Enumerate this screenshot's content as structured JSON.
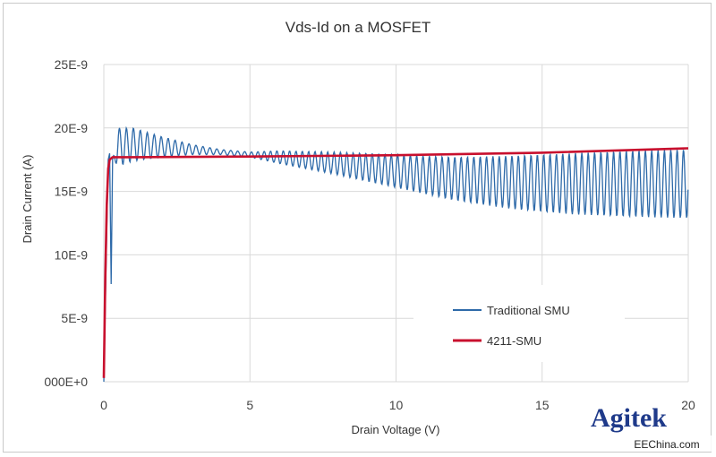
{
  "chart_data": {
    "type": "line",
    "title": "Vds-Id on a MOSFET",
    "xlabel": "Drain Voltage (V)",
    "ylabel": "Drain Current (A)",
    "xlim": [
      0,
      20
    ],
    "ylim": [
      0,
      2.5e-08
    ],
    "x_ticks": [
      0,
      5,
      10,
      15,
      20
    ],
    "x_tick_labels": [
      "0",
      "5",
      "10",
      "15",
      "20"
    ],
    "y_ticks": [
      0,
      5e-09,
      1e-08,
      1.5e-08,
      2e-08,
      2.5e-08
    ],
    "y_tick_labels": [
      "000E+0",
      "5E-9",
      "10E-9",
      "15E-9",
      "20E-9",
      "25E-9"
    ],
    "grid": true,
    "legend_position": "lower-right",
    "series": [
      {
        "name": "Traditional SMU",
        "color": "#2e6aa9",
        "description_points": {
          "x": [
            0.0,
            0.1,
            0.15,
            0.2,
            0.25,
            0.3,
            0.5,
            1.0,
            2.0,
            3.0,
            4.0,
            5.0,
            6.0,
            8.0,
            10.0,
            12.0,
            14.0,
            16.0,
            18.0,
            20.0
          ],
          "y_center": [
            0.0,
            1.2e-08,
            1.75e-08,
            1.8e-08,
            7.7e-09,
            1.75e-08,
            1.85e-08,
            1.87e-08,
            1.85e-08,
            1.83e-08,
            1.81e-08,
            1.79e-08,
            1.77e-08,
            1.72e-08,
            1.66e-08,
            1.6e-08,
            1.57e-08,
            1.56e-08,
            1.56e-08,
            1.56e-08
          ],
          "y_amplitude": [
            0.0,
            0.0,
            0.0,
            0.0,
            0.0,
            0.0,
            1.5e-09,
            1.3e-09,
            8e-10,
            4e-10,
            2e-10,
            2e-10,
            5e-10,
            9e-10,
            1.3e-09,
            1.7e-09,
            2.1e-09,
            2.4e-09,
            2.6e-09,
            2.7e-09
          ]
        }
      },
      {
        "name": "4211-SMU",
        "color": "#c8102e",
        "x": [
          0.0,
          0.05,
          0.1,
          0.15,
          0.2,
          0.3,
          1.0,
          5.0,
          10.0,
          15.0,
          20.0
        ],
        "y": [
          3e-10,
          8e-09,
          1.4e-08,
          1.68e-08,
          1.75e-08,
          1.77e-08,
          1.77e-08,
          1.775e-08,
          1.785e-08,
          1.805e-08,
          1.84e-08
        ]
      }
    ]
  },
  "branding": {
    "logo_text": "Agitek",
    "watermark": "EEChina.com"
  }
}
